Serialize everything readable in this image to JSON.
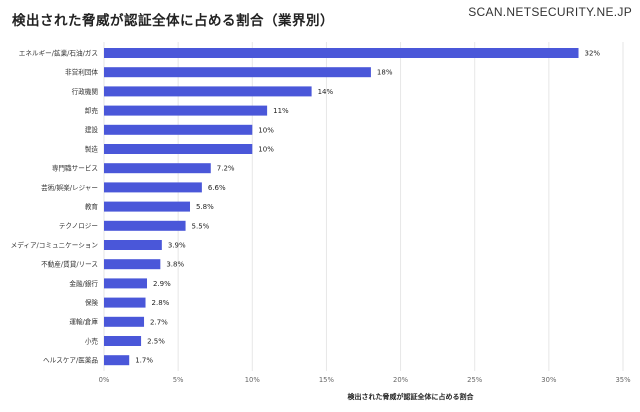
{
  "header": {
    "title": "検出された脅威が認証全体に占める割合（業界別）",
    "watermark": "SCAN.NETSECURITY.NE.JP"
  },
  "chart_data": {
    "type": "bar",
    "orientation": "horizontal",
    "title": "検出された脅威が認証全体に占める割合（業界別）",
    "xlabel": "検出された脅威が認証全体に占める割合",
    "ylabel": "",
    "categories": [
      "エネルギー/鉱業/石油/ガス",
      "非営利団体",
      "行政機関",
      "卸売",
      "建設",
      "製造",
      "専門職サービス",
      "芸術/娯楽/レジャー",
      "教育",
      "テクノロジー",
      "メディア/コミュニケーション",
      "不動産/賃貸/リース",
      "金融/銀行",
      "保険",
      "運輸/倉庫",
      "小売",
      "ヘルスケア/医薬品"
    ],
    "values": [
      32,
      18,
      14,
      11,
      10,
      10,
      7.2,
      6.6,
      5.8,
      5.5,
      3.9,
      3.8,
      2.9,
      2.8,
      2.7,
      2.5,
      1.7
    ],
    "value_labels": [
      "32%",
      "18%",
      "14%",
      "11%",
      "10%",
      "10%",
      "7.2%",
      "6.6%",
      "5.8%",
      "5.5%",
      "3.9%",
      "3.8%",
      "2.9%",
      "2.8%",
      "2.7%",
      "2.5%",
      "1.7%"
    ],
    "xticks": [
      "0%",
      "5%",
      "10%",
      "15%",
      "20%",
      "25%",
      "30%",
      "35%"
    ],
    "xlim": [
      0,
      35
    ],
    "grid": true,
    "bar_color": "#4a57d9",
    "grid_color": "#e6e6e6"
  }
}
